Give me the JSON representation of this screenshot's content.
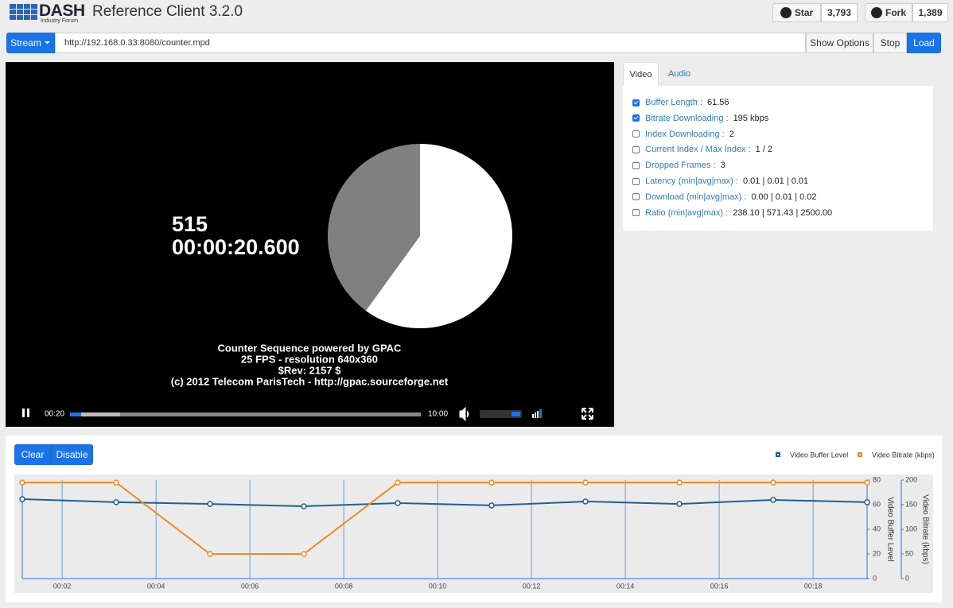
{
  "header": {
    "logo": "DASH",
    "logo_sub": "Industry Forum",
    "title": "Reference Client",
    "version": "3.2.0",
    "star": "Star",
    "star_count": "3,793",
    "fork": "Fork",
    "fork_count": "1,389"
  },
  "toolbar": {
    "stream": "Stream",
    "url": "http://192.168.0.33:8080/counter.mpd",
    "buttons": [
      "Show Options",
      "Stop",
      "Load"
    ]
  },
  "video": {
    "count": "515",
    "timecode": "00:00:20.600",
    "credits": [
      "Counter Sequence powered by GPAC",
      "25 FPS - resolution 640x360",
      "$Rev: 2157 $",
      "(c) 2012 Telecom ParisTech - http://gpac.sourceforge.net"
    ],
    "current_time": "00:20",
    "duration": "10:00"
  },
  "tabs": [
    "Video",
    "Audio"
  ],
  "metrics": [
    {
      "label": "Buffer Length :",
      "value": "61.56",
      "checked": true
    },
    {
      "label": "Bitrate Downloading :",
      "value": "195 kbps",
      "checked": true
    },
    {
      "label": "Index Downloading :",
      "value": "2",
      "checked": false
    },
    {
      "label": "Current Index / Max Index :",
      "value": "1 / 2",
      "checked": false
    },
    {
      "label": "Dropped Frames :",
      "value": "3",
      "checked": false
    },
    {
      "label": "Latency (min|avg|max) :",
      "value": "0.01 | 0.01 | 0.01",
      "checked": false
    },
    {
      "label": "Download (min|avg|max) :",
      "value": "0.00 | 0.01 | 0.02",
      "checked": false
    },
    {
      "label": "Ratio (min|avg|max) :",
      "value": "238.10 | 571.43 | 2500.00",
      "checked": false
    }
  ],
  "chart": {
    "type": "line",
    "buttons": [
      "Clear",
      "Disable"
    ],
    "x": [
      1.15,
      3.15,
      5.15,
      7.15,
      9.15,
      11.15,
      13.15,
      15.15,
      17.15,
      19.15
    ],
    "xlim": [
      1.15,
      19.15
    ],
    "xticks": [
      {
        "value": 2,
        "label": "00:02"
      },
      {
        "value": 4,
        "label": "00:04"
      },
      {
        "value": 6,
        "label": "00:06"
      },
      {
        "value": 8,
        "label": "00:08"
      },
      {
        "value": 10,
        "label": "00:10"
      },
      {
        "value": 12,
        "label": "00:12"
      },
      {
        "value": 14,
        "label": "00:14"
      },
      {
        "value": 16,
        "label": "00:16"
      },
      {
        "value": 18,
        "label": "00:18"
      }
    ],
    "ylim": [
      0,
      80
    ],
    "yticks": [
      0,
      20,
      40,
      60,
      80
    ],
    "ylabel": "Video Buffer Level",
    "y2lim": [
      0,
      200
    ],
    "y2ticks": [
      0,
      50,
      100,
      150,
      200
    ],
    "y2label": "Video Bitrate (kbps)",
    "series": [
      {
        "name": "Video Buffer Level",
        "color": "#1f5f96",
        "values": [
          64.5,
          62,
          60.6,
          58.7,
          61.3,
          59.4,
          62.6,
          60.6,
          63.9,
          62
        ]
      },
      {
        "name": "Video Bitrate (kbps)",
        "color": "#f08a24",
        "axis": "y2",
        "values": [
          195,
          195,
          50,
          50,
          195,
          195,
          195,
          195,
          195,
          195
        ]
      }
    ]
  }
}
